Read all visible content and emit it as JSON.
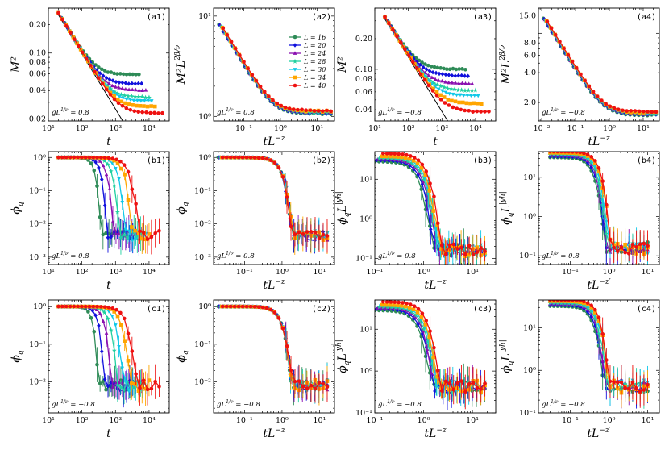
{
  "figure": {
    "legend": [
      {
        "label": "L = 16",
        "color": "#2e8b57"
      },
      {
        "label": "L = 20",
        "color": "#1010dd"
      },
      {
        "label": "L = 24",
        "color": "#8a10b0"
      },
      {
        "label": "L = 28",
        "color": "#20d0a0"
      },
      {
        "label": "L = 30",
        "color": "#10c8e8"
      },
      {
        "label": "L = 34",
        "color": "#ffa500"
      },
      {
        "label": "L = 40",
        "color": "#ee1111"
      }
    ]
  },
  "chart_data": [
    {
      "id": "a1",
      "label": "(a1)",
      "type": "line",
      "xscale": "log",
      "yscale": "log",
      "xlim": [
        10,
        40000
      ],
      "ylim": [
        0.019,
        0.3
      ],
      "xlabel": "t",
      "ylabel": "M²",
      "annotation": "gL1/ν = 0.8",
      "xticks": [
        "10¹",
        "10²",
        "10³",
        "10⁴"
      ],
      "yticks": [
        "0.02",
        "0.04",
        "0.06",
        "0.08",
        "0.10",
        "0.20"
      ],
      "series": [
        {
          "name": "L = 16",
          "plateau": 0.059
        },
        {
          "name": "L = 20",
          "plateau": 0.047
        },
        {
          "name": "L = 24",
          "plateau": 0.04
        },
        {
          "name": "L = 28",
          "plateau": 0.034
        },
        {
          "name": "L = 30",
          "plateau": 0.031
        },
        {
          "name": "L = 34",
          "plateau": 0.027
        },
        {
          "name": "L = 40",
          "plateau": 0.023
        }
      ],
      "powerlaw_line": {
        "x": [
          18,
          1800
        ],
        "y": [
          0.27,
          0.018
        ]
      }
    },
    {
      "id": "a2",
      "label": "(a2)",
      "type": "line",
      "xscale": "log",
      "yscale": "log",
      "xlim": [
        0.015,
        30
      ],
      "ylim": [
        0.9,
        12
      ],
      "xlabel": "tL−z",
      "ylabel": "M²L2β/ν",
      "annotation": "gL1/ν = 0.8",
      "xticks": [
        "10⁻¹",
        "10⁰",
        "10¹"
      ],
      "yticks": [
        "10⁰",
        "10¹"
      ],
      "collapse_plateau": 1.1
    },
    {
      "id": "a3",
      "label": "(a3)",
      "type": "line",
      "xscale": "log",
      "yscale": "log",
      "xlim": [
        10,
        40000
      ],
      "ylim": [
        0.031,
        0.4
      ],
      "xlabel": "t",
      "ylabel": "M²",
      "annotation": "gL1/ν = −0.8",
      "xticks": [
        "10¹",
        "10²",
        "10³",
        "10⁴"
      ],
      "yticks": [
        "0.04",
        "0.06",
        "0.08",
        "0.10",
        "0.20"
      ],
      "series": [
        {
          "name": "L = 16",
          "plateau": 0.1
        },
        {
          "name": "L = 20",
          "plateau": 0.086
        },
        {
          "name": "L = 24",
          "plateau": 0.072
        },
        {
          "name": "L = 28",
          "plateau": 0.062
        },
        {
          "name": "L = 30",
          "plateau": 0.055
        },
        {
          "name": "L = 34",
          "plateau": 0.046
        },
        {
          "name": "L = 40",
          "plateau": 0.038
        }
      ],
      "powerlaw_line": {
        "x": [
          18,
          1800
        ],
        "y": [
          0.33,
          0.028
        ]
      }
    },
    {
      "id": "a4",
      "label": "(a4)",
      "type": "line",
      "xscale": "log",
      "yscale": "log",
      "xlim": [
        0.008,
        30
      ],
      "ylim": [
        1.3,
        18
      ],
      "xlabel": "tL−z",
      "ylabel": "M²L2β/ν",
      "annotation": "gL1/ν = −0.8",
      "xticks": [
        "10⁻²",
        "10⁻¹",
        "10⁰",
        "10¹"
      ],
      "yticks": [
        "2.0",
        "4.0",
        "6.0",
        "8.0",
        "10.0",
        "15.0"
      ],
      "collapse_plateau": 1.55
    },
    {
      "id": "b1",
      "label": "(b1)",
      "type": "line",
      "xscale": "log",
      "yscale": "log",
      "xlim": [
        10,
        40000
      ],
      "ylim": [
        0.0006,
        1.5
      ],
      "xlabel": "t",
      "ylabel": "ϕq",
      "annotation": "gL1/ν = 0.8",
      "xticks": [
        "10¹",
        "10²",
        "10³",
        "10⁴"
      ],
      "yticks": [
        "10⁻³",
        "10⁻²",
        "10⁻¹",
        "10⁰"
      ],
      "noise_floor": 0.0045,
      "decay_time_L16": 230
    },
    {
      "id": "b2",
      "label": "(b2)",
      "type": "line",
      "xscale": "log",
      "yscale": "log",
      "xlim": [
        0.015,
        25
      ],
      "ylim": [
        0.0006,
        1.5
      ],
      "xlabel": "tL−z",
      "ylabel": "ϕq",
      "annotation": "gL1/ν = 0.8",
      "xticks": [
        "10⁻¹",
        "10⁰",
        "10¹"
      ],
      "yticks": [
        "10⁻³",
        "10⁻²",
        "10⁻¹",
        "10⁰"
      ],
      "noise_floor": 0.0045
    },
    {
      "id": "b3",
      "label": "(b3)",
      "type": "line",
      "xscale": "log",
      "yscale": "log",
      "xlim": [
        0.1,
        30
      ],
      "ylim": [
        0.07,
        50
      ],
      "xlabel": "tL−z",
      "ylabel": "ϕqL|yh|",
      "annotation": "gL1/ν = 0.8",
      "xticks": [
        "10⁻¹",
        "10⁰",
        "10¹"
      ],
      "yticks": [
        "10⁻¹",
        "10⁰",
        "10¹"
      ],
      "noise_floor": 0.16
    },
    {
      "id": "b4",
      "label": "(b4)",
      "type": "line",
      "xscale": "log",
      "yscale": "log",
      "xlim": [
        0.015,
        20
      ],
      "ylim": [
        0.06,
        45
      ],
      "xlabel": "tL−z′",
      "ylabel": "ϕqL|yh|",
      "annotation": "gL1/ν = 0.8",
      "xticks": [
        "10⁻¹",
        "10⁰",
        "10¹"
      ],
      "yticks": [
        "10⁻¹",
        "10⁰",
        "10¹"
      ],
      "noise_floor": 0.16
    },
    {
      "id": "c1",
      "label": "(c1)",
      "type": "line",
      "xscale": "log",
      "yscale": "log",
      "xlim": [
        10,
        40000
      ],
      "ylim": [
        0.0015,
        1.5
      ],
      "xlabel": "t",
      "ylabel": "ϕq",
      "annotation": "gL1/ν = −0.8",
      "xticks": [
        "10¹",
        "10²",
        "10³",
        "10⁴"
      ],
      "yticks": [
        "10⁻²",
        "10⁻¹",
        "10⁰"
      ],
      "noise_floor": 0.008
    },
    {
      "id": "c2",
      "label": "(c2)",
      "type": "line",
      "xscale": "log",
      "yscale": "log",
      "xlim": [
        0.015,
        25
      ],
      "ylim": [
        0.0015,
        1.5
      ],
      "xlabel": "tL−z",
      "ylabel": "ϕq",
      "annotation": "gL1/ν = −0.8",
      "xticks": [
        "10⁻¹",
        "10⁰",
        "10¹"
      ],
      "yticks": [
        "10⁻²",
        "10⁻¹",
        "10⁰"
      ],
      "noise_floor": 0.008
    },
    {
      "id": "c3",
      "label": "(c3)",
      "type": "line",
      "xscale": "log",
      "yscale": "log",
      "xlim": [
        0.1,
        30
      ],
      "ylim": [
        0.1,
        50
      ],
      "xlabel": "tL−z",
      "ylabel": "ϕqL|yh|",
      "annotation": "gL1/ν = −0.8",
      "xticks": [
        "10⁻¹",
        "10⁰",
        "10¹"
      ],
      "yticks": [
        "10⁻¹",
        "10⁰",
        "10¹"
      ],
      "noise_floor": 0.42
    },
    {
      "id": "c4",
      "label": "(c4)",
      "type": "line",
      "xscale": "log",
      "yscale": "log",
      "xlim": [
        0.015,
        20
      ],
      "ylim": [
        0.1,
        45
      ],
      "xlabel": "tL−z′",
      "ylabel": "ϕqL|yh|",
      "annotation": "gL1/ν = −0.8",
      "xticks": [
        "10⁻¹",
        "10⁰",
        "10¹"
      ],
      "yticks": [
        "10⁻¹",
        "10⁰",
        "10¹"
      ],
      "noise_floor": 0.42
    }
  ]
}
